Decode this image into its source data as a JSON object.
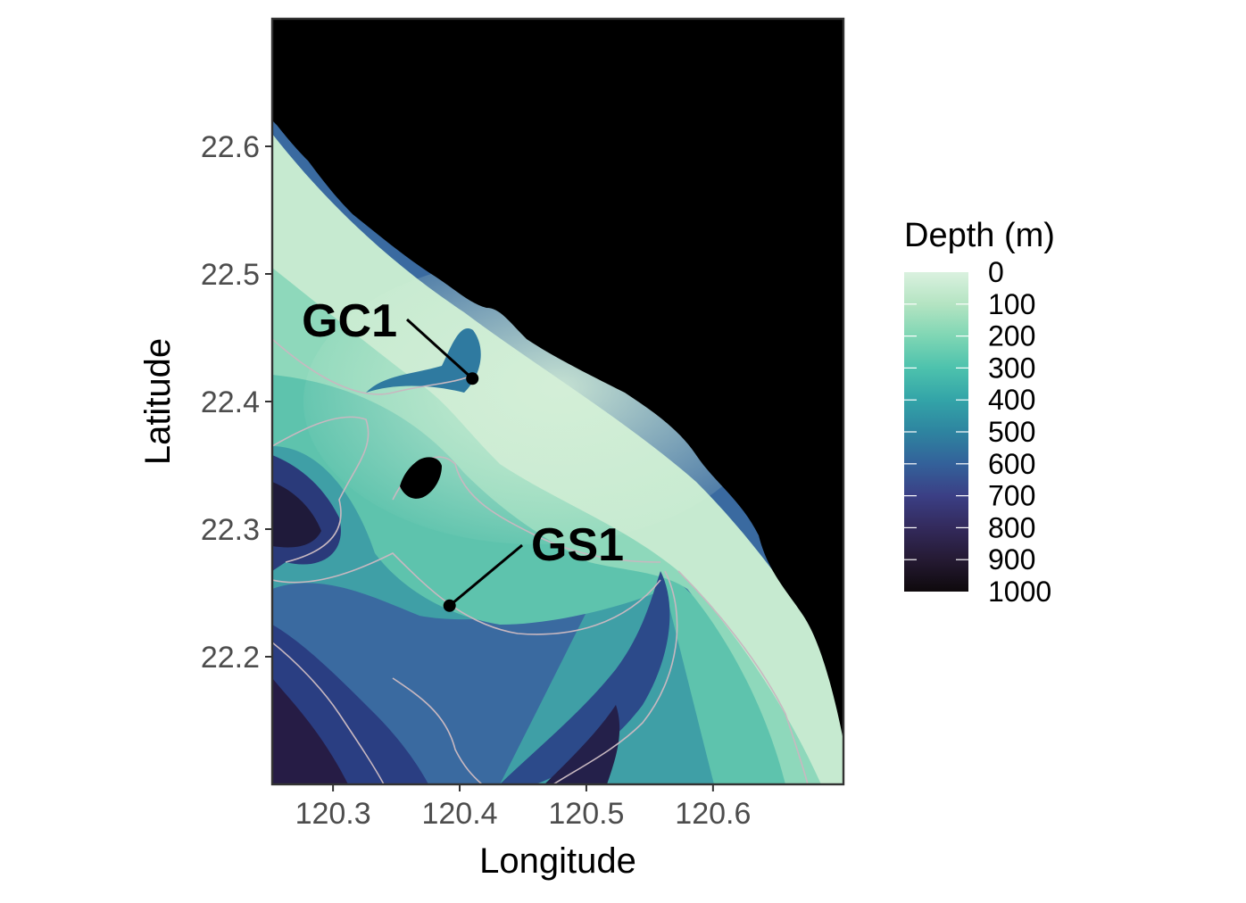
{
  "map": {
    "xlabel": "Longitude",
    "ylabel": "Latitude",
    "x_ticks": [
      {
        "value": 120.3,
        "label": "120.3"
      },
      {
        "value": 120.4,
        "label": "120.4"
      },
      {
        "value": 120.5,
        "label": "120.5"
      },
      {
        "value": 120.6,
        "label": "120.6"
      }
    ],
    "y_ticks": [
      {
        "value": 22.6,
        "label": "22.6"
      },
      {
        "value": 22.5,
        "label": "22.5"
      },
      {
        "value": 22.4,
        "label": "22.4"
      },
      {
        "value": 22.3,
        "label": "22.3"
      },
      {
        "value": 22.2,
        "label": "22.2"
      }
    ],
    "xlim": [
      120.252,
      120.703
    ],
    "ylim": [
      22.1,
      22.7
    ],
    "land_color": "#000000",
    "contour_color": "#c8b8c0"
  },
  "sites": [
    {
      "name": "GC1",
      "lon": 120.41,
      "lat": 22.418
    },
    {
      "name": "GS1",
      "lon": 120.392,
      "lat": 22.24
    }
  ],
  "legend": {
    "title": "Depth (m)",
    "labels": [
      "0",
      "100",
      "200",
      "300",
      "400",
      "500",
      "600",
      "700",
      "800",
      "900",
      "1000"
    ],
    "colors": [
      "#daf1df",
      "#b4e4c2",
      "#7fd6b4",
      "#4dc2ad",
      "#33a4a8",
      "#2e84a0",
      "#33619a",
      "#3b3f85",
      "#332a5c",
      "#251a33",
      "#0e090c"
    ],
    "range": [
      0,
      1000
    ]
  }
}
